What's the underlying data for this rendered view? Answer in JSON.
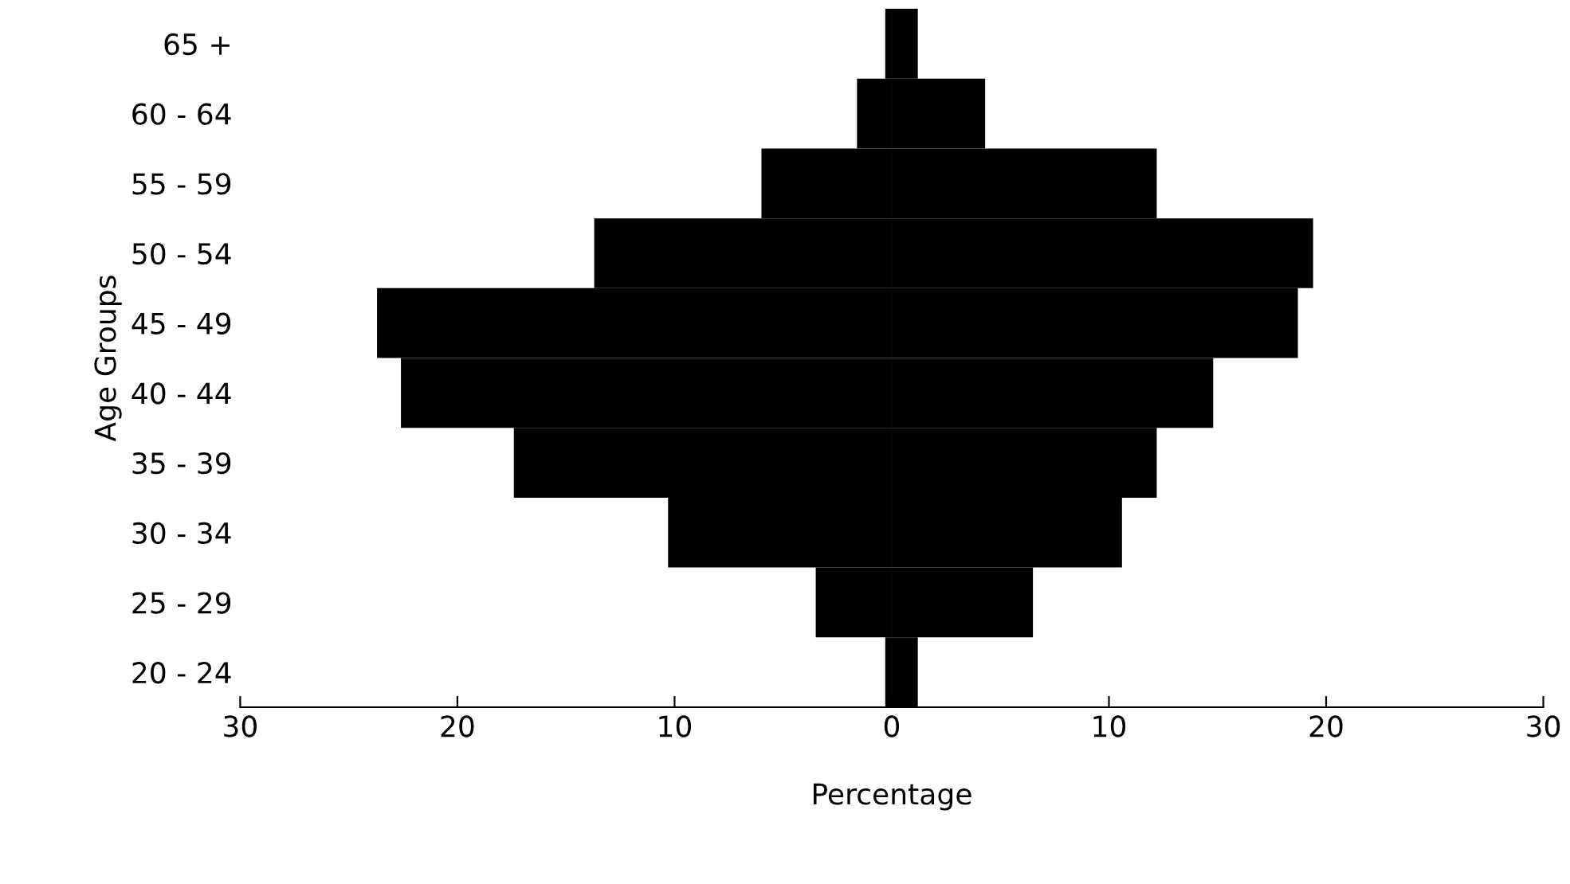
{
  "chart_data": {
    "type": "bar",
    "orientation": "horizontal",
    "xlabel": "Percentage",
    "ylabel": "Age Groups",
    "categories": [
      "65 +",
      "60 - 64",
      "55 - 59",
      "50 - 54",
      "45 - 49",
      "40 - 44",
      "35 - 39",
      "30 - 34",
      "25 - 29",
      "20 - 24"
    ],
    "series": [
      {
        "color": "#000000",
        "values": [
          -0.3,
          -1.6,
          -6.0,
          -13.7,
          -23.7,
          -22.6,
          -17.4,
          -10.3,
          -3.5,
          -0.3
        ]
      },
      {
        "color": "#000000",
        "values": [
          1.2,
          4.3,
          12.2,
          19.4,
          18.7,
          14.8,
          12.2,
          10.6,
          6.5,
          1.2
        ]
      }
    ],
    "xlim": [
      -30,
      30
    ],
    "xticks": [
      {
        "value": -30,
        "label": "30"
      },
      {
        "value": -20,
        "label": "20"
      },
      {
        "value": -10,
        "label": "10"
      },
      0,
      10,
      20,
      30
    ],
    "stacked": true,
    "grid": false,
    "legend": false
  }
}
